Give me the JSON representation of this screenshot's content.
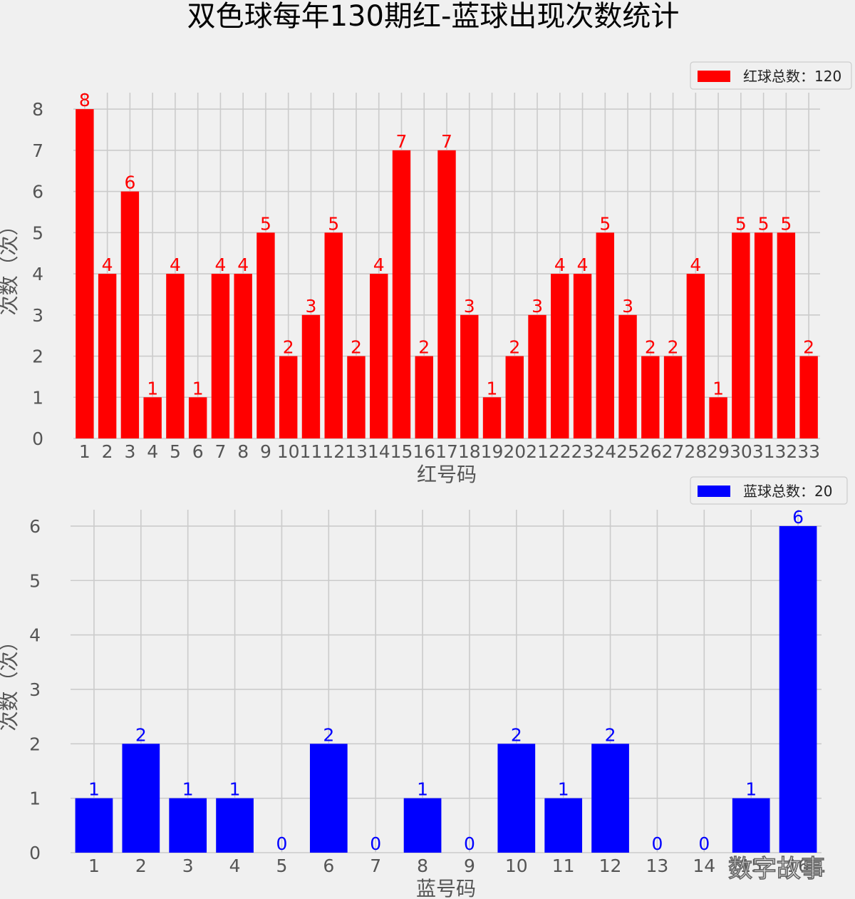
{
  "title": "双色球每年130期红-蓝球出现次数统计",
  "watermark": "数字故事",
  "chart_data": [
    {
      "type": "bar",
      "color": "#ff0000",
      "categories": [
        "1",
        "2",
        "3",
        "4",
        "5",
        "6",
        "7",
        "8",
        "9",
        "10",
        "11",
        "12",
        "13",
        "14",
        "15",
        "16",
        "17",
        "18",
        "19",
        "20",
        "21",
        "22",
        "23",
        "24",
        "25",
        "26",
        "27",
        "28",
        "29",
        "30",
        "31",
        "32",
        "33"
      ],
      "values": [
        8,
        4,
        6,
        1,
        4,
        1,
        4,
        4,
        5,
        2,
        3,
        5,
        2,
        4,
        7,
        2,
        7,
        3,
        1,
        2,
        3,
        4,
        4,
        5,
        3,
        2,
        2,
        4,
        1,
        5,
        5,
        5,
        2
      ],
      "xlabel": "红号码",
      "ylabel": "次数（次）",
      "ylim": [
        0,
        8.4
      ],
      "yticks": [
        0,
        1,
        2,
        3,
        4,
        5,
        6,
        7,
        8
      ],
      "legend": "红球总数：120",
      "legend_position": "top-right",
      "grid": true
    },
    {
      "type": "bar",
      "color": "#0000ff",
      "categories": [
        "1",
        "2",
        "3",
        "4",
        "5",
        "6",
        "7",
        "8",
        "9",
        "10",
        "11",
        "12",
        "13",
        "14",
        "15",
        "16"
      ],
      "values": [
        1,
        2,
        1,
        1,
        0,
        2,
        0,
        1,
        0,
        2,
        1,
        2,
        0,
        0,
        1,
        6
      ],
      "xlabel": "蓝号码",
      "ylabel": "次数（次）",
      "ylim": [
        0,
        6.3
      ],
      "yticks": [
        0,
        1,
        2,
        3,
        4,
        5,
        6
      ],
      "legend": "蓝球总数：20",
      "legend_position": "top-right",
      "grid": true
    }
  ]
}
